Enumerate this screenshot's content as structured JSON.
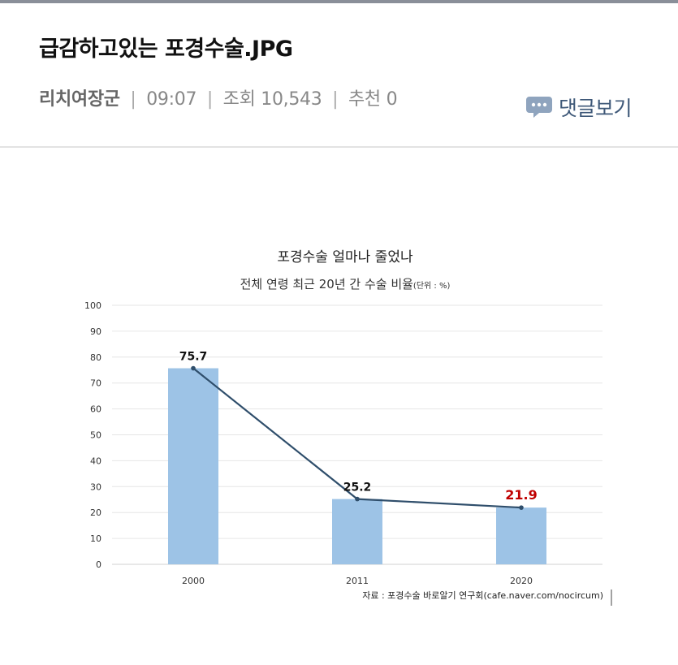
{
  "post": {
    "title": "급감하고있는 포경수술.JPG",
    "author": "리치여장군",
    "time": "09:07",
    "views_label": "조회",
    "views": "10,543",
    "recommend_label": "추천",
    "recommend": "0",
    "separator": "|",
    "comments_label": "댓글보기"
  },
  "colors": {
    "bar": "#9dc3e6",
    "line": "#2f4e6b",
    "highlight_label": "#c00000",
    "comment_icon": "#8fa4be"
  },
  "chart_data": {
    "type": "bar",
    "title": "포경수술 얼마나 줄었나",
    "subtitle": "전체 연령 최근 20년 간 수술 비율",
    "unit_note": "(단위 : %)",
    "categories": [
      "2000",
      "2011",
      "2020"
    ],
    "values": [
      75.7,
      25.2,
      21.9
    ],
    "value_labels": [
      "75.7",
      "25.2",
      "21.9"
    ],
    "highlight_index": 2,
    "overlay_line": true,
    "ylim": [
      0,
      100
    ],
    "yticks": [
      0,
      10,
      20,
      30,
      40,
      50,
      60,
      70,
      80,
      90,
      100
    ],
    "ytick_labels": [
      "0",
      "10",
      "20",
      "30",
      "40",
      "50",
      "60",
      "70",
      "80",
      "90",
      "100"
    ],
    "grid": true,
    "xlabel": "",
    "ylabel": "",
    "source": "자료 : 포경수술 바로알기 연구회(cafe.naver.com/nocircum)"
  }
}
